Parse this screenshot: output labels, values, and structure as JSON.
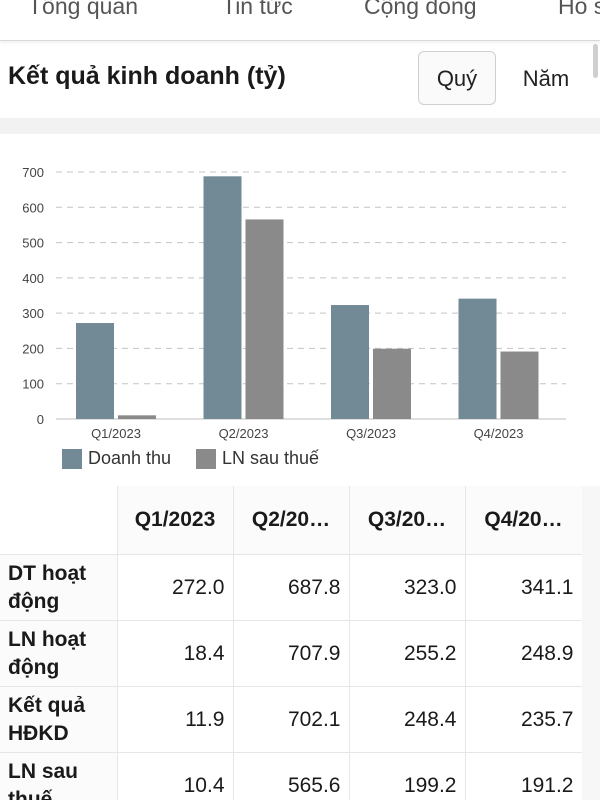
{
  "nav": {
    "tabs": [
      "Tổng quan",
      "Tin tức",
      "Cộng đồng",
      "Hồ sơ"
    ]
  },
  "section": {
    "title": "Kết quả kinh doanh (tỷ)",
    "period_options": [
      "Quý",
      "Năm"
    ],
    "selected_period": "Quý"
  },
  "chart_data": {
    "type": "bar",
    "categories": [
      "Q1/2023",
      "Q2/2023",
      "Q3/2023",
      "Q4/2023"
    ],
    "series": [
      {
        "name": "Doanh thu",
        "values": [
          272.0,
          687.8,
          323.0,
          341.1
        ],
        "color": "#728a96"
      },
      {
        "name": "LN sau thuế",
        "values": [
          10.4,
          565.6,
          199.2,
          191.2
        ],
        "color": "#8a8a8a"
      }
    ],
    "ylim": [
      0,
      700
    ],
    "yticks": [
      0,
      100,
      200,
      300,
      400,
      500,
      600,
      700
    ],
    "grid": true,
    "legend_position": "bottom-left"
  },
  "table": {
    "headers": [
      "",
      "Q1/2023",
      "Q2/20…",
      "Q3/20…",
      "Q4/20…"
    ],
    "rows": [
      {
        "label": "DT hoạt động",
        "values": [
          "272.0",
          "687.8",
          "323.0",
          "341.1"
        ]
      },
      {
        "label": "LN hoạt động",
        "values": [
          "18.4",
          "707.9",
          "255.2",
          "248.9"
        ]
      },
      {
        "label": "Kết quả HĐKD",
        "values": [
          "11.9",
          "702.1",
          "248.4",
          "235.7"
        ]
      },
      {
        "label": "LN sau thuế",
        "values": [
          "10.4",
          "565.6",
          "199.2",
          "191.2"
        ]
      }
    ]
  }
}
